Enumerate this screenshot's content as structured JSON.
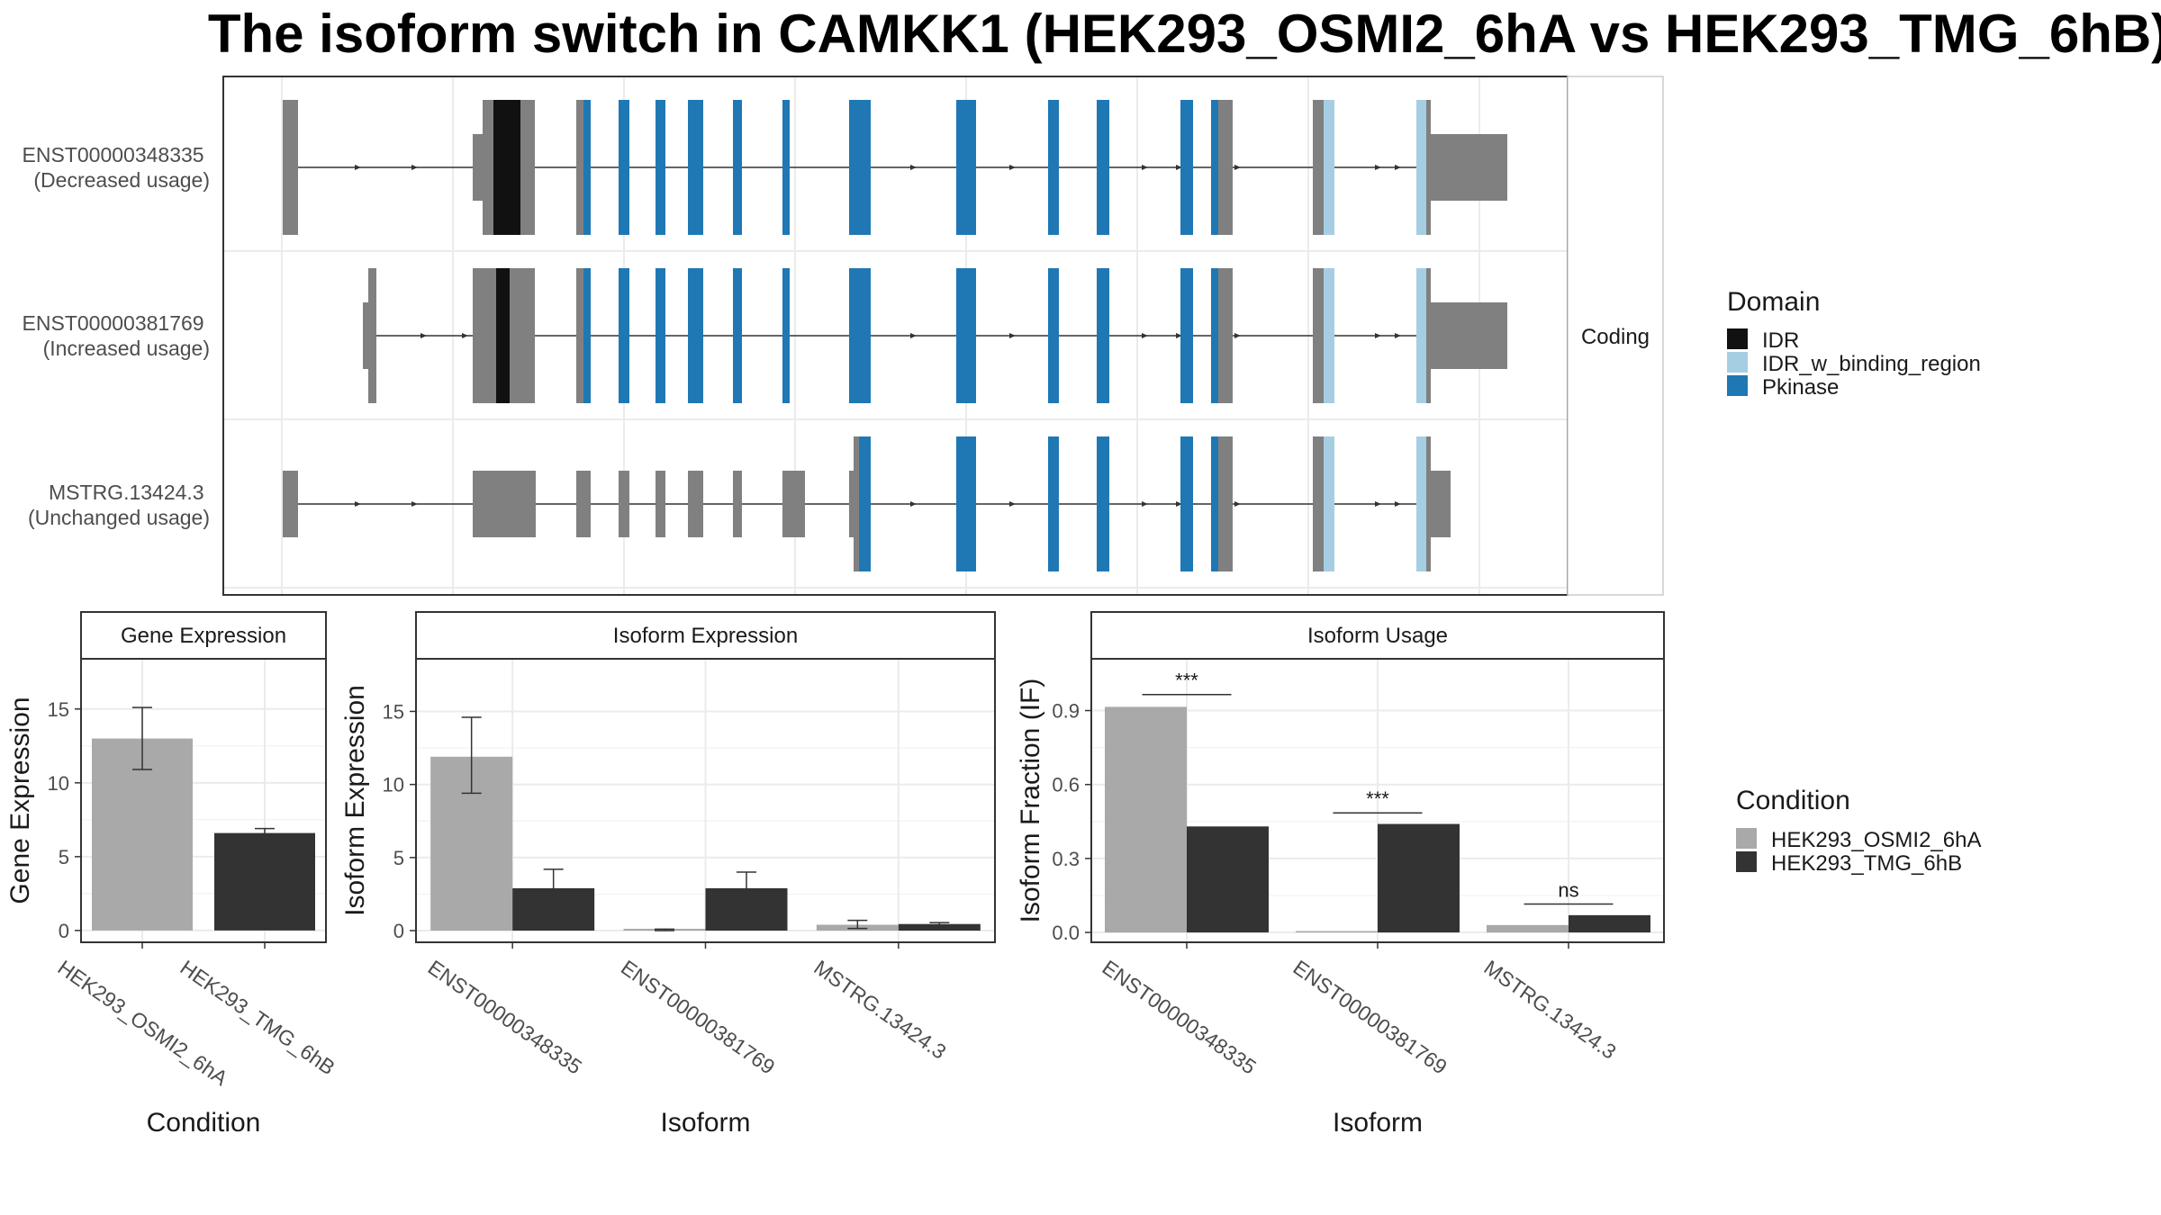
{
  "title": "The isoform switch in CAMKK1 (HEK293_OSMI2_6hA vs HEK293_TMG_6hB)",
  "colors": {
    "IDR": "#111111",
    "IDR_w_binding_region": "#a6cee3",
    "Pkinase": "#1f78b4",
    "noncoding": "#808080",
    "condA": "#a9a9a9",
    "condB": "#333333"
  },
  "transcripts": [
    {
      "id": "ENST00000348335",
      "usage": "(Decreased usage)"
    },
    {
      "id": "ENST00000381769",
      "usage": "(Increased usage)"
    },
    {
      "id": "MSTRG.13424.3",
      "usage": "(Unchanged usage)"
    }
  ],
  "facet_label": "Coding",
  "domain_legend": {
    "title": "Domain",
    "items": [
      "IDR",
      "IDR_w_binding_region",
      "Pkinase"
    ]
  },
  "condition_legend": {
    "title": "Condition",
    "items": [
      "HEK293_OSMI2_6hA",
      "HEK293_TMG_6hB"
    ]
  },
  "chart_data": [
    {
      "type": "bar",
      "title": "Gene Expression",
      "xlabel": "Condition",
      "ylabel": "Gene Expression",
      "categories": [
        "HEK293_OSMI2_6hA",
        "HEK293_TMG_6hB"
      ],
      "values": [
        13.0,
        6.6
      ],
      "err_low": [
        10.9,
        6.4
      ],
      "err_high": [
        15.1,
        6.9
      ],
      "yticks": [
        0,
        5,
        10,
        15
      ],
      "ylim": [
        -0.8,
        18.4
      ]
    },
    {
      "type": "bar",
      "title": "Isoform Expression",
      "xlabel": "Isoform",
      "ylabel": "Isoform Expression",
      "categories": [
        "ENST00000348335",
        "ENST00000381769",
        "MSTRG.13424.3"
      ],
      "series": [
        {
          "name": "HEK293_OSMI2_6hA",
          "values": [
            11.9,
            0.05,
            0.4
          ],
          "err_low": [
            9.4,
            0.0,
            0.15
          ],
          "err_high": [
            14.6,
            0.1,
            0.7
          ]
        },
        {
          "name": "HEK293_TMG_6hB",
          "values": [
            2.9,
            2.9,
            0.45
          ],
          "err_low": [
            1.6,
            1.8,
            0.35
          ],
          "err_high": [
            4.2,
            4.0,
            0.55
          ]
        }
      ],
      "yticks": [
        0,
        5,
        10,
        15
      ],
      "ylim": [
        -0.8,
        18.6
      ]
    },
    {
      "type": "bar",
      "title": "Isoform Usage",
      "xlabel": "Isoform",
      "ylabel": "Isoform Fraction (IF)",
      "categories": [
        "ENST00000348335",
        "ENST00000381769",
        "MSTRG.13424.3"
      ],
      "series": [
        {
          "name": "HEK293_OSMI2_6hA",
          "values": [
            0.915,
            0.0,
            0.03
          ]
        },
        {
          "name": "HEK293_TMG_6hB",
          "values": [
            0.43,
            0.44,
            0.07
          ]
        }
      ],
      "significance": [
        "***",
        "***",
        "ns"
      ],
      "sig_y": [
        0.965,
        0.485,
        0.115
      ],
      "yticks": [
        0.0,
        0.3,
        0.6,
        0.9
      ],
      "ylim": [
        -0.04,
        1.11
      ]
    }
  ]
}
